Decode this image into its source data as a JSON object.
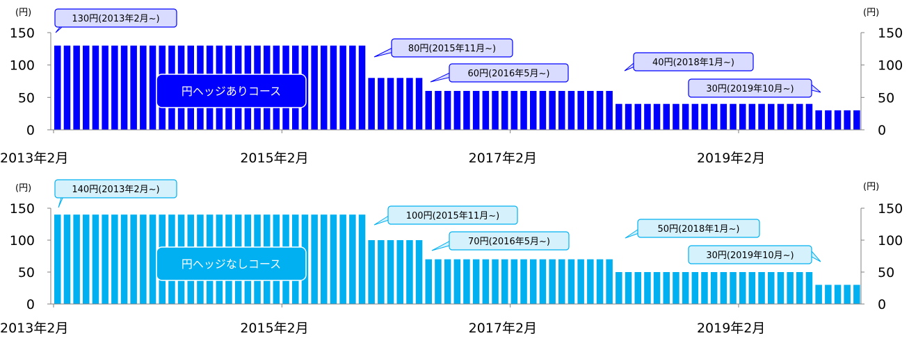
{
  "unit_label": "(円)",
  "chart_data": [
    {
      "type": "bar",
      "course_label": "円ヘッジありコース",
      "colors": {
        "bar": "#0000ff",
        "callout_fill": "#d9dcff",
        "callout_stroke": "#0000ff",
        "badge_fill": "#0000ff"
      },
      "ylim": [
        0,
        150
      ],
      "yticks": [
        "0",
        "50",
        "100",
        "150"
      ],
      "xtick_labels": [
        "2013年2月",
        "2015年2月",
        "2017年2月",
        "2019年2月"
      ],
      "xtick_indices": [
        0,
        24,
        48,
        72
      ],
      "segments": [
        {
          "count": 33,
          "value": 130
        },
        {
          "count": 6,
          "value": 80
        },
        {
          "count": 20,
          "value": 60
        },
        {
          "count": 21,
          "value": 40
        },
        {
          "count": 5,
          "value": 30
        }
      ],
      "callouts": [
        "130円(2013年2月~)",
        "80円(2015年11月~)",
        "60円(2016年5月~)",
        "40円(2018年1月~)",
        "30円(2019年10月~)"
      ]
    },
    {
      "type": "bar",
      "course_label": "円ヘッジなしコース",
      "colors": {
        "bar": "#00b0f0",
        "callout_fill": "#d4f1fc",
        "callout_stroke": "#00b0f0",
        "badge_fill": "#00b0f0"
      },
      "ylim": [
        0,
        150
      ],
      "yticks": [
        "0",
        "50",
        "100",
        "150"
      ],
      "xtick_labels": [
        "2013年2月",
        "2015年2月",
        "2017年2月",
        "2019年2月"
      ],
      "xtick_indices": [
        0,
        24,
        48,
        72
      ],
      "segments": [
        {
          "count": 33,
          "value": 140
        },
        {
          "count": 6,
          "value": 100
        },
        {
          "count": 20,
          "value": 70
        },
        {
          "count": 21,
          "value": 50
        },
        {
          "count": 5,
          "value": 30
        }
      ],
      "callouts": [
        "140円(2013年2月~)",
        "100円(2015年11月~)",
        "70円(2016年5月~)",
        "50円(2018年1月~)",
        "30円(2019年10月~)"
      ]
    }
  ]
}
